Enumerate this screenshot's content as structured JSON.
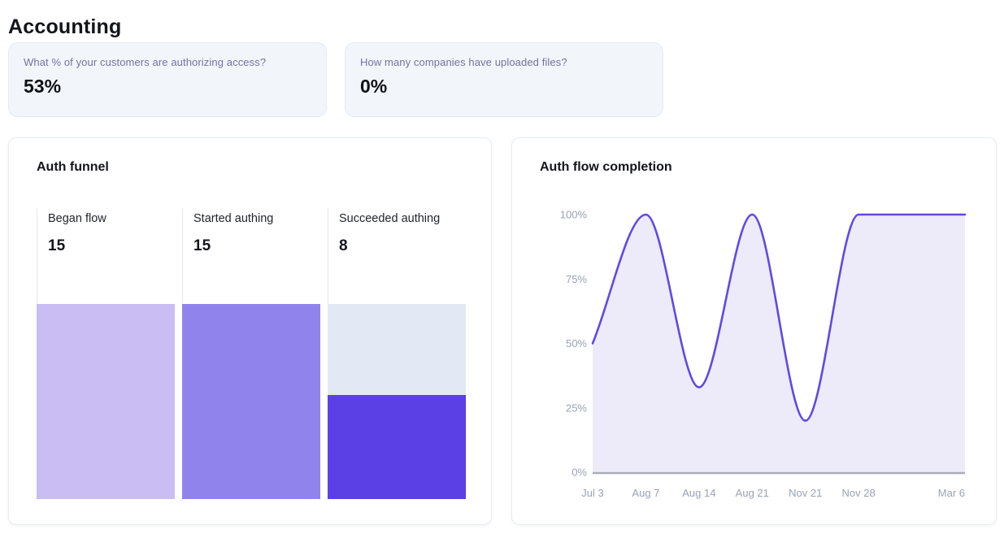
{
  "page": {
    "title": "Accounting"
  },
  "stat_cards": [
    {
      "question": "What % of your customers are authorizing access?",
      "value": "53%"
    },
    {
      "question": "How many companies have uploaded files?",
      "value": "0%"
    }
  ],
  "chart_data": [
    {
      "type": "bar",
      "variant": "funnel",
      "title": "Auth funnel",
      "categories": [
        "Began flow",
        "Started authing",
        "Succeeded authing"
      ],
      "values": [
        15,
        15,
        8
      ],
      "ymax": 15,
      "bar_colors": [
        "#c9bdf3",
        "#9183ec",
        "#5b40e6"
      ],
      "track_color": "#e3e9f4"
    },
    {
      "type": "area",
      "title": "Auth flow completion",
      "x": [
        "Jul 3",
        "Aug 7",
        "Aug 14",
        "Aug 21",
        "Nov 21",
        "Nov 28",
        "",
        "Mar 6"
      ],
      "values": [
        50,
        100,
        33,
        100,
        20,
        100,
        100,
        100
      ],
      "ylim": [
        0,
        100
      ],
      "yticks": [
        "0%",
        "25%",
        "50%",
        "75%",
        "100%"
      ],
      "grid": false,
      "legend": false,
      "line_color": "#6347e4",
      "fill_color": "#edebf9",
      "axis_color": "#a8adb8",
      "tick_color": "#9aa1b4"
    }
  ]
}
